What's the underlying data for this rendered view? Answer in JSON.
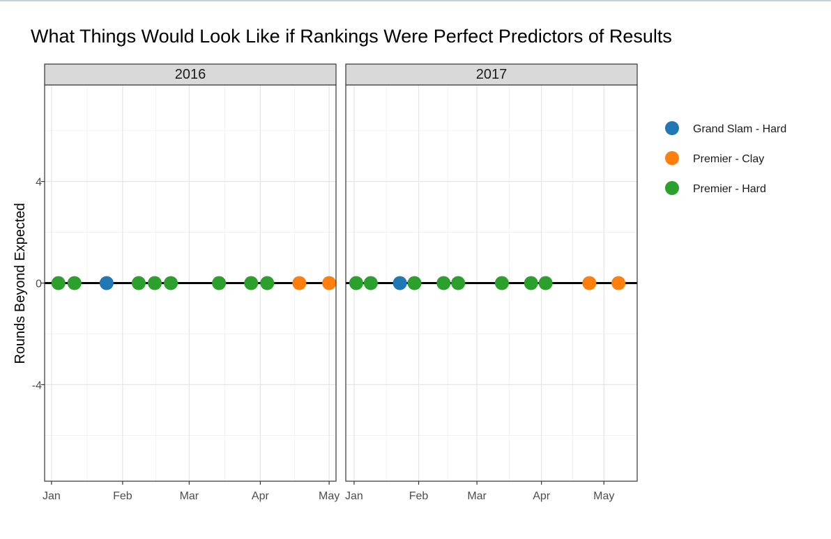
{
  "chart_data": {
    "type": "scatter",
    "title": "What Things Would Look Like if Rankings  Were Perfect Predictors of Results",
    "xlabel": "",
    "ylabel": "Rounds Beyond Expected",
    "ylim": [
      -7.8,
      7.8
    ],
    "y_ticks": [
      4,
      0,
      -4
    ],
    "y_tick_labels": [
      "4",
      "0",
      "-4"
    ],
    "x_tick_labels": [
      "Jan",
      "Feb",
      "Mar",
      "Apr",
      "May"
    ],
    "reference_line_y": 0,
    "grid": true,
    "legend_position": "right",
    "legend": [
      {
        "name": "Grand Slam - Hard",
        "color": "#1f77b4"
      },
      {
        "name": "Premier - Clay",
        "color": "#ff7f0e"
      },
      {
        "name": "Premier - Hard",
        "color": "#2ca02c"
      }
    ],
    "panels": [
      {
        "label": "2016",
        "xlim": [
          "2015-12-29",
          "2016-05-04"
        ],
        "x_ticks": [
          "2016-01-01",
          "2016-02-01",
          "2016-03-01",
          "2016-04-01",
          "2016-05-01"
        ],
        "points": [
          {
            "x": "2016-01-04",
            "y": 0,
            "category": "Premier - Hard"
          },
          {
            "x": "2016-01-11",
            "y": 0,
            "category": "Premier - Hard"
          },
          {
            "x": "2016-01-25",
            "y": 0,
            "category": "Grand Slam - Hard"
          },
          {
            "x": "2016-02-08",
            "y": 0,
            "category": "Premier - Hard"
          },
          {
            "x": "2016-02-15",
            "y": 0,
            "category": "Premier - Hard"
          },
          {
            "x": "2016-02-22",
            "y": 0,
            "category": "Premier - Hard"
          },
          {
            "x": "2016-03-14",
            "y": 0,
            "category": "Premier - Hard"
          },
          {
            "x": "2016-03-28",
            "y": 0,
            "category": "Premier - Hard"
          },
          {
            "x": "2016-04-04",
            "y": 0,
            "category": "Premier - Hard"
          },
          {
            "x": "2016-04-18",
            "y": 0,
            "category": "Premier - Clay"
          },
          {
            "x": "2016-05-01",
            "y": 0,
            "category": "Premier - Clay"
          }
        ]
      },
      {
        "label": "2017",
        "xlim": [
          "2016-12-28",
          "2017-05-17"
        ],
        "x_ticks": [
          "2017-01-01",
          "2017-02-01",
          "2017-03-01",
          "2017-04-01",
          "2017-05-01"
        ],
        "points": [
          {
            "x": "2017-01-02",
            "y": 0,
            "category": "Premier - Hard"
          },
          {
            "x": "2017-01-09",
            "y": 0,
            "category": "Premier - Hard"
          },
          {
            "x": "2017-01-23",
            "y": 0,
            "category": "Grand Slam - Hard"
          },
          {
            "x": "2017-01-30",
            "y": 0,
            "category": "Premier - Hard"
          },
          {
            "x": "2017-02-13",
            "y": 0,
            "category": "Premier - Hard"
          },
          {
            "x": "2017-02-20",
            "y": 0,
            "category": "Premier - Hard"
          },
          {
            "x": "2017-03-13",
            "y": 0,
            "category": "Premier - Hard"
          },
          {
            "x": "2017-03-27",
            "y": 0,
            "category": "Premier - Hard"
          },
          {
            "x": "2017-04-03",
            "y": 0,
            "category": "Premier - Hard"
          },
          {
            "x": "2017-04-24",
            "y": 0,
            "category": "Premier - Clay"
          },
          {
            "x": "2017-05-08",
            "y": 0,
            "category": "Premier - Clay"
          }
        ]
      }
    ]
  }
}
